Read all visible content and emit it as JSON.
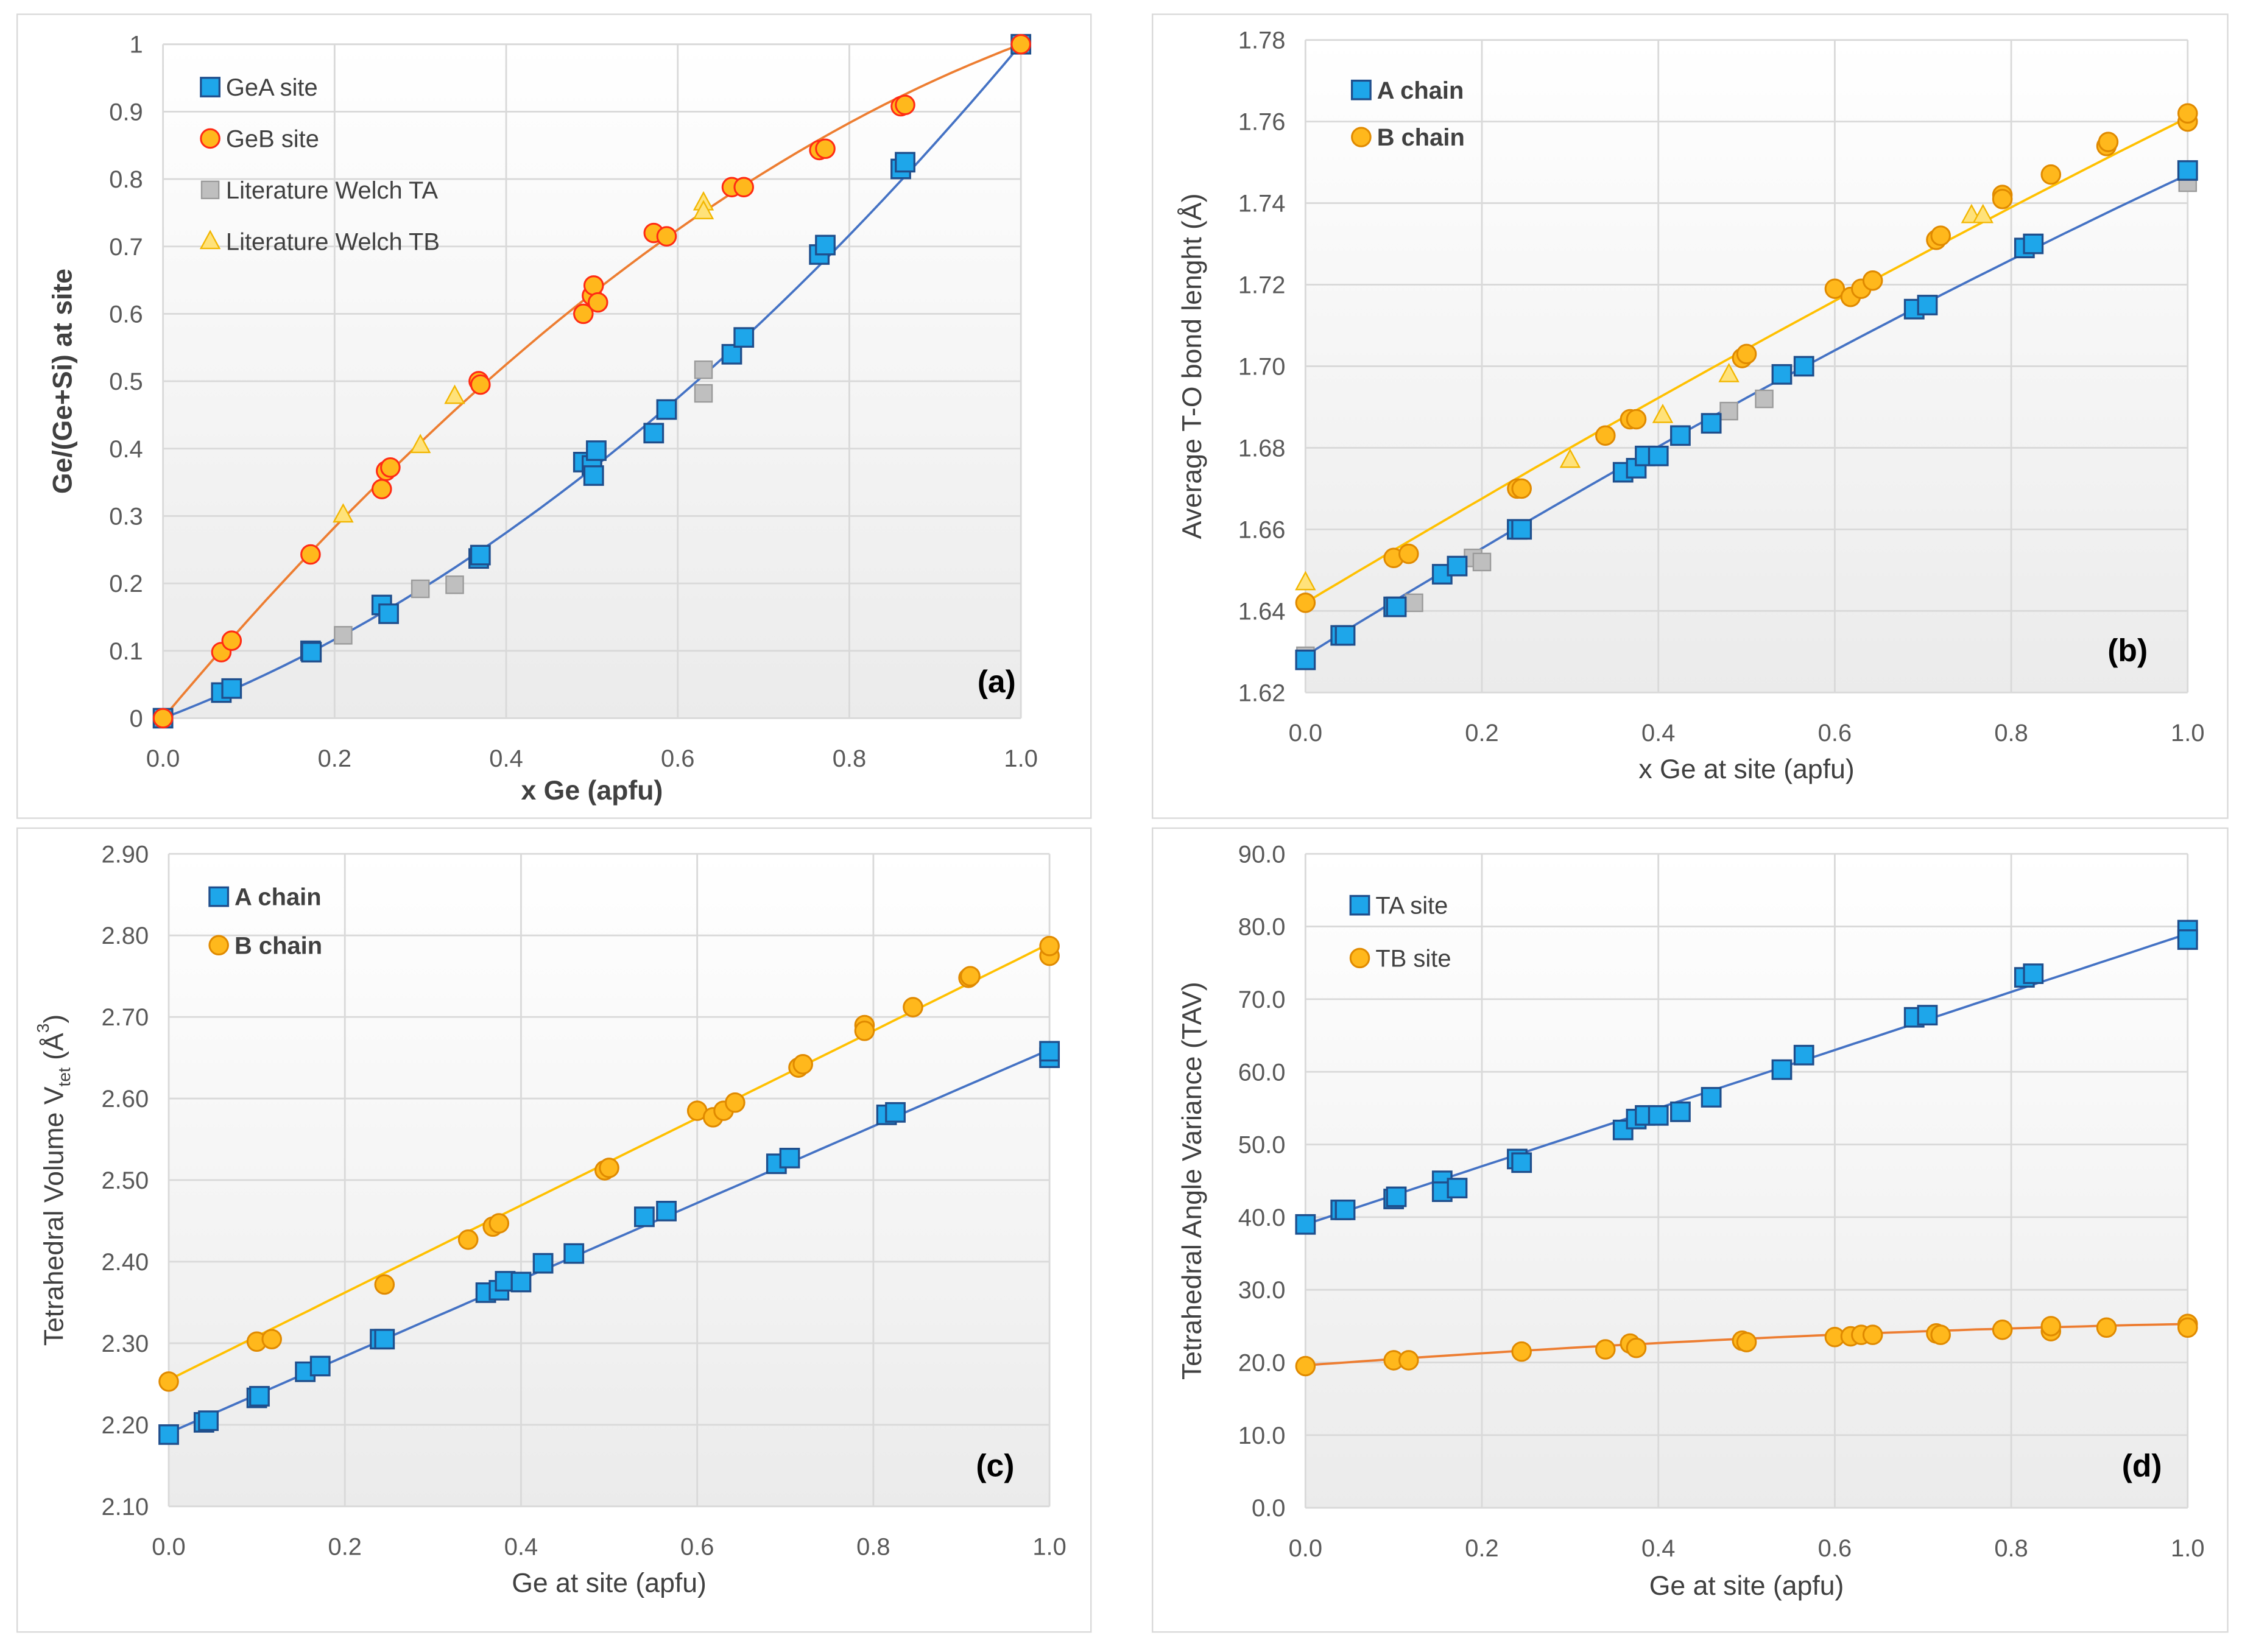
{
  "colors": {
    "blue_fill": "#1ea6ea",
    "blue_stroke": "#1f4e8c",
    "blue_line": "#4472c4",
    "orange_fill": "#ffb81c",
    "orange_stroke_a": "#ff2b14",
    "orange_stroke": "#e08a00",
    "orange_line": "#ed7d31",
    "yellow_line": "#ffc000",
    "gray_fill": "#bfbfbf",
    "gray_stroke": "#9a9a9a",
    "tri_fill": "#ffe27a",
    "tri_stroke": "#f2b600"
  },
  "chart_data": [
    {
      "type": "scatter",
      "panel_label": "(a)",
      "bold_axes": true,
      "xlabel": "x Ge (apfu)",
      "ylabel_parts": [
        "Ge/(Ge+Si) at site"
      ],
      "xlim": [
        0,
        1
      ],
      "ylim": [
        0,
        1
      ],
      "grid": true,
      "legend_placement": "top-left",
      "xticks": [
        "0.0",
        "0.2",
        "0.4",
        "0.6",
        "0.8",
        "1.0"
      ],
      "yticks": [
        "0",
        "0.1",
        "0.2",
        "0.3",
        "0.4",
        "0.5",
        "0.6",
        "0.7",
        "0.8",
        "0.9",
        "1"
      ],
      "series": [
        {
          "name": "GeA site",
          "marker": "square",
          "legend": true,
          "trend": [
            0,
            0.48,
            0.52
          ],
          "line": "blue_line",
          "points": [
            [
              0,
              0
            ],
            [
              0.068,
              0.038
            ],
            [
              0.08,
              0.044
            ],
            [
              0.172,
              0.1
            ],
            [
              0.173,
              0.098
            ],
            [
              0.255,
              0.168
            ],
            [
              0.263,
              0.155
            ],
            [
              0.368,
              0.237
            ],
            [
              0.37,
              0.242
            ],
            [
              0.49,
              0.38
            ],
            [
              0.5,
              0.375
            ],
            [
              0.505,
              0.397
            ],
            [
              0.502,
              0.36
            ],
            [
              0.572,
              0.423
            ],
            [
              0.587,
              0.458
            ],
            [
              0.663,
              0.54
            ],
            [
              0.677,
              0.565
            ],
            [
              0.765,
              0.688
            ],
            [
              0.772,
              0.702
            ],
            [
              0.86,
              0.815
            ],
            [
              0.865,
              0.825
            ],
            [
              1,
              1
            ]
          ]
        },
        {
          "name": "GeB site",
          "marker": "circle-red",
          "legend": true,
          "trend": [
            0,
            1.52,
            -0.52
          ],
          "line": "orange_line",
          "points": [
            [
              0,
              0
            ],
            [
              0.068,
              0.098
            ],
            [
              0.08,
              0.115
            ],
            [
              0.172,
              0.243
            ],
            [
              0.255,
              0.34
            ],
            [
              0.26,
              0.367
            ],
            [
              0.265,
              0.372
            ],
            [
              0.368,
              0.5
            ],
            [
              0.37,
              0.495
            ],
            [
              0.49,
              0.6
            ],
            [
              0.5,
              0.627
            ],
            [
              0.502,
              0.642
            ],
            [
              0.507,
              0.617
            ],
            [
              0.572,
              0.72
            ],
            [
              0.587,
              0.715
            ],
            [
              0.663,
              0.788
            ],
            [
              0.677,
              0.788
            ],
            [
              0.765,
              0.843
            ],
            [
              0.772,
              0.845
            ],
            [
              0.86,
              0.908
            ],
            [
              0.865,
              0.91
            ],
            [
              1,
              1
            ]
          ]
        },
        {
          "name": "Literature Welch TA",
          "marker": "gray-square",
          "legend": true,
          "points": [
            [
              0.21,
              0.123
            ],
            [
              0.3,
              0.192
            ],
            [
              0.34,
              0.198
            ],
            [
              0.63,
              0.517
            ],
            [
              0.63,
              0.482
            ]
          ]
        },
        {
          "name": "Literature Welch TB",
          "marker": "triangle",
          "legend": true,
          "points": [
            [
              0.21,
              0.302
            ],
            [
              0.3,
              0.405
            ],
            [
              0.34,
              0.478
            ],
            [
              0.63,
              0.765
            ],
            [
              0.63,
              0.752
            ]
          ]
        }
      ]
    },
    {
      "type": "scatter",
      "panel_label": "(b)",
      "bold_axes": false,
      "xlabel": "x Ge at site (apfu)",
      "ylabel_parts": [
        "Average T-O bond lenght (Å)"
      ],
      "xlim": [
        0,
        1
      ],
      "ylim": [
        1.62,
        1.78
      ],
      "grid": true,
      "legend_placement": "top-left",
      "xticks": [
        "0.0",
        "0.2",
        "0.4",
        "0.6",
        "0.8",
        "1.0"
      ],
      "yticks": [
        "1.62",
        "1.64",
        "1.66",
        "1.68",
        "1.70",
        "1.72",
        "1.74",
        "1.76",
        "1.78"
      ],
      "series": [
        {
          "name": "Literature Welch TA",
          "marker": "gray-square",
          "legend": false,
          "points": [
            [
              0,
              1.629
            ],
            [
              0.123,
              1.642
            ],
            [
              0.19,
              1.653
            ],
            [
              0.2,
              1.652
            ],
            [
              0.48,
              1.689
            ],
            [
              0.52,
              1.692
            ],
            [
              1,
              1.745
            ]
          ]
        },
        {
          "name": "Literature Welch TB",
          "marker": "triangle",
          "legend": false,
          "points": [
            [
              0,
              1.647
            ],
            [
              0.3,
              1.677
            ],
            [
              0.405,
              1.688
            ],
            [
              0.48,
              1.698
            ],
            [
              0.755,
              1.737
            ],
            [
              0.768,
              1.737
            ]
          ]
        },
        {
          "name": "A chain",
          "marker": "square",
          "legend": true,
          "trend": [
            1.629,
            0.135,
            -0.017
          ],
          "line": "blue_line",
          "points": [
            [
              0,
              1.628
            ],
            [
              0.04,
              1.634
            ],
            [
              0.045,
              1.634
            ],
            [
              0.1,
              1.641
            ],
            [
              0.103,
              1.641
            ],
            [
              0.155,
              1.649
            ],
            [
              0.172,
              1.651
            ],
            [
              0.24,
              1.66
            ],
            [
              0.245,
              1.66
            ],
            [
              0.36,
              1.674
            ],
            [
              0.375,
              1.675
            ],
            [
              0.385,
              1.678
            ],
            [
              0.4,
              1.678
            ],
            [
              0.425,
              1.683
            ],
            [
              0.46,
              1.686
            ],
            [
              0.54,
              1.698
            ],
            [
              0.565,
              1.7
            ],
            [
              0.69,
              1.714
            ],
            [
              0.705,
              1.715
            ],
            [
              0.815,
              1.729
            ],
            [
              0.825,
              1.73
            ],
            [
              1,
              1.748
            ]
          ]
        },
        {
          "name": "B chain",
          "marker": "circle",
          "legend": true,
          "trend": [
            1.642,
            0.13,
            -0.011
          ],
          "line": "yellow_line",
          "points": [
            [
              0,
              1.642
            ],
            [
              0.1,
              1.653
            ],
            [
              0.117,
              1.654
            ],
            [
              0.24,
              1.67
            ],
            [
              0.245,
              1.67
            ],
            [
              0.34,
              1.683
            ],
            [
              0.368,
              1.687
            ],
            [
              0.375,
              1.687
            ],
            [
              0.495,
              1.702
            ],
            [
              0.5,
              1.703
            ],
            [
              0.6,
              1.719
            ],
            [
              0.618,
              1.717
            ],
            [
              0.63,
              1.719
            ],
            [
              0.643,
              1.721
            ],
            [
              0.715,
              1.731
            ],
            [
              0.72,
              1.732
            ],
            [
              0.79,
              1.742
            ],
            [
              0.79,
              1.741
            ],
            [
              0.845,
              1.747
            ],
            [
              0.908,
              1.754
            ],
            [
              0.91,
              1.755
            ],
            [
              1,
              1.76
            ],
            [
              1,
              1.762
            ]
          ]
        }
      ]
    },
    {
      "type": "scatter",
      "panel_label": "(c)",
      "bold_axes": false,
      "xlabel": "Ge at site (apfu)",
      "ylabel_parts": [
        "Tetrahedral  Volume V",
        "tet",
        " (Å",
        "3",
        ")"
      ],
      "xlim": [
        0,
        1
      ],
      "ylim": [
        2.1,
        2.9
      ],
      "grid": true,
      "legend_placement": "top-left",
      "xticks": [
        "0.0",
        "0.2",
        "0.4",
        "0.6",
        "0.8",
        "1.0"
      ],
      "yticks": [
        "2.10",
        "2.20",
        "2.30",
        "2.40",
        "2.50",
        "2.60",
        "2.70",
        "2.80",
        "2.90"
      ],
      "series": [
        {
          "name": "A chain",
          "marker": "square",
          "legend": true,
          "trend": [
            2.19,
            0.47,
            0
          ],
          "line": "blue_line",
          "points": [
            [
              0,
              2.188
            ],
            [
              0.04,
              2.203
            ],
            [
              0.045,
              2.205
            ],
            [
              0.1,
              2.233
            ],
            [
              0.103,
              2.235
            ],
            [
              0.155,
              2.265
            ],
            [
              0.172,
              2.272
            ],
            [
              0.24,
              2.305
            ],
            [
              0.245,
              2.305
            ],
            [
              0.36,
              2.362
            ],
            [
              0.375,
              2.365
            ],
            [
              0.382,
              2.376
            ],
            [
              0.4,
              2.375
            ],
            [
              0.425,
              2.398
            ],
            [
              0.46,
              2.41
            ],
            [
              0.54,
              2.455
            ],
            [
              0.565,
              2.462
            ],
            [
              0.69,
              2.52
            ],
            [
              0.705,
              2.527
            ],
            [
              0.815,
              2.58
            ],
            [
              0.825,
              2.583
            ],
            [
              1,
              2.65
            ],
            [
              1,
              2.658
            ]
          ]
        },
        {
          "name": "B chain",
          "marker": "circle",
          "legend": true,
          "trend": [
            2.255,
            0.535,
            0
          ],
          "line": "yellow_line",
          "points": [
            [
              0,
              2.253
            ],
            [
              0.1,
              2.302
            ],
            [
              0.117,
              2.305
            ],
            [
              0.245,
              2.372
            ],
            [
              0.34,
              2.427
            ],
            [
              0.368,
              2.443
            ],
            [
              0.375,
              2.447
            ],
            [
              0.495,
              2.512
            ],
            [
              0.5,
              2.515
            ],
            [
              0.6,
              2.585
            ],
            [
              0.618,
              2.577
            ],
            [
              0.63,
              2.585
            ],
            [
              0.643,
              2.595
            ],
            [
              0.715,
              2.638
            ],
            [
              0.72,
              2.642
            ],
            [
              0.79,
              2.69
            ],
            [
              0.79,
              2.683
            ],
            [
              0.845,
              2.712
            ],
            [
              0.908,
              2.748
            ],
            [
              0.91,
              2.75
            ],
            [
              1,
              2.775
            ],
            [
              1,
              2.787
            ]
          ]
        }
      ]
    },
    {
      "type": "scatter",
      "panel_label": "(d)",
      "bold_axes": false,
      "xlabel": "Ge at site (apfu)",
      "ylabel_parts": [
        "Tetrahedral Angle Variance (TAV)"
      ],
      "xlim": [
        0,
        1
      ],
      "ylim": [
        0,
        90
      ],
      "grid": true,
      "legend_placement": "top-left",
      "xticks": [
        "0.0",
        "0.2",
        "0.4",
        "0.6",
        "0.8",
        "1.0"
      ],
      "yticks": [
        "0.0",
        "10.0",
        "20.0",
        "30.0",
        "40.0",
        "50.0",
        "60.0",
        "70.0",
        "80.0",
        "90.0"
      ],
      "series": [
        {
          "name": "TA site",
          "marker": "square",
          "legend": true,
          "trend": [
            39,
            40,
            0
          ],
          "line": "blue_line",
          "points": [
            [
              0,
              39
            ],
            [
              0.04,
              41
            ],
            [
              0.045,
              41
            ],
            [
              0.1,
              42.5
            ],
            [
              0.103,
              42.8
            ],
            [
              0.155,
              45
            ],
            [
              0.155,
              43.5
            ],
            [
              0.172,
              44
            ],
            [
              0.24,
              48
            ],
            [
              0.245,
              47.5
            ],
            [
              0.36,
              52
            ],
            [
              0.375,
              53.5
            ],
            [
              0.385,
              54
            ],
            [
              0.4,
              54
            ],
            [
              0.425,
              54.5
            ],
            [
              0.46,
              56.5
            ],
            [
              0.54,
              60.3
            ],
            [
              0.565,
              62.3
            ],
            [
              0.69,
              67.5
            ],
            [
              0.705,
              67.8
            ],
            [
              0.815,
              73
            ],
            [
              0.825,
              73.5
            ],
            [
              1,
              79.5
            ],
            [
              1,
              78.2
            ]
          ]
        },
        {
          "name": "TB site",
          "marker": "circle",
          "legend": true,
          "trend": [
            19.6,
            9,
            -3.3
          ],
          "line": "orange_line",
          "points": [
            [
              0,
              19.5
            ],
            [
              0.1,
              20.3
            ],
            [
              0.117,
              20.3
            ],
            [
              0.245,
              21.5
            ],
            [
              0.34,
              21.8
            ],
            [
              0.368,
              22.6
            ],
            [
              0.375,
              22
            ],
            [
              0.495,
              23
            ],
            [
              0.5,
              22.8
            ],
            [
              0.6,
              23.5
            ],
            [
              0.618,
              23.6
            ],
            [
              0.63,
              23.8
            ],
            [
              0.643,
              23.8
            ],
            [
              0.715,
              24
            ],
            [
              0.72,
              23.8
            ],
            [
              0.79,
              24.5
            ],
            [
              0.845,
              24.3
            ],
            [
              0.845,
              25
            ],
            [
              0.908,
              24.8
            ],
            [
              1,
              25.3
            ],
            [
              1,
              24.8
            ]
          ]
        }
      ]
    }
  ]
}
